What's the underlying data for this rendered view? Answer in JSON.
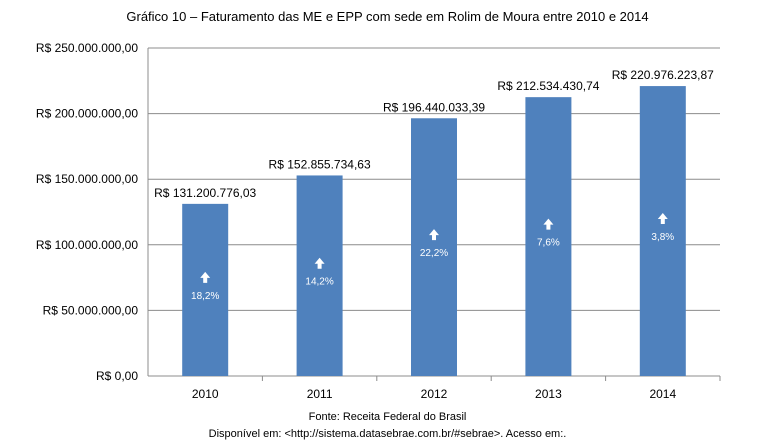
{
  "chart_data": {
    "type": "bar",
    "title": "Gráfico 10 – Faturamento das ME e EPP com sede em Rolim de Moura  entre 2010  e 2014",
    "categories": [
      "2010",
      "2011",
      "2012",
      "2013",
      "2014"
    ],
    "values": [
      131200776.03,
      152855734.63,
      196440033.39,
      212534430.74,
      220976223.87
    ],
    "value_labels": [
      "R$ 131.200.776,03",
      "R$ 152.855.734,63",
      "R$ 196.440.033,39",
      "R$ 212.534.430,74",
      "R$ 220.976.223,87"
    ],
    "growth_labels": [
      "18,2%",
      "14,2%",
      "22,2%",
      "7,6%",
      "3,8%"
    ],
    "growth_icon": "arrow-up-icon",
    "ylim": [
      0,
      250000000
    ],
    "yticks": [
      0,
      50000000,
      100000000,
      150000000,
      200000000,
      250000000
    ],
    "ytick_labels": [
      "R$ 0,00",
      "R$ 50.000.000,00",
      "R$ 100.000.000,00",
      "R$ 150.000.000,00",
      "R$ 200.000.000,00",
      "R$ 250.000.000,00"
    ],
    "xlabel": "",
    "ylabel": "",
    "grid": true,
    "bar_color": "#4f81bd",
    "legend": "none"
  },
  "footer": {
    "source": "Fonte: Receita Federal do Brasil",
    "availability": "Disponível em: <http://sistema.datasebrae.com.br/#sebrae>. Acesso em:."
  }
}
